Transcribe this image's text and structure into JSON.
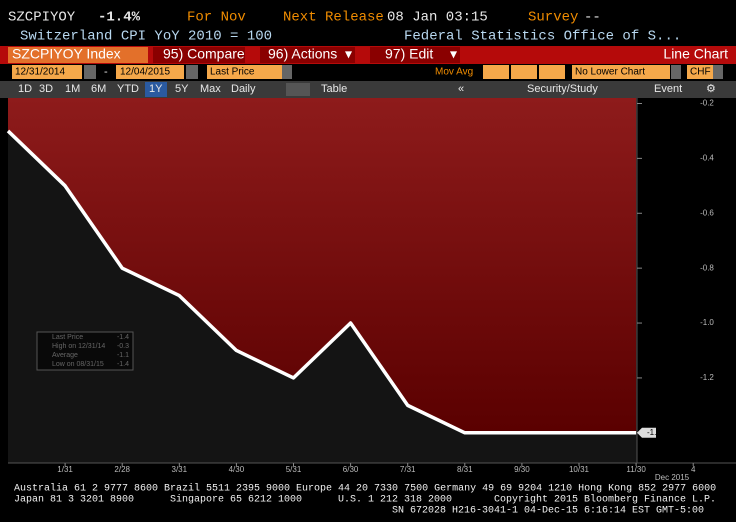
{
  "header": {
    "ticker": "SZCPIYOY",
    "change": "-1.4%",
    "period": "For Nov",
    "release_label": "Next Release",
    "release": "08 Jan 03:15",
    "survey_label": "Survey",
    "survey": "--",
    "description": "Switzerland CPI YoY 2010 = 100",
    "source": "Federal Statistics Office of S..."
  },
  "menu": {
    "security": "SZCPIYOY Index",
    "items": [
      "95) Compare",
      "96) Actions",
      "97) Edit"
    ],
    "chart_type": "Line Chart"
  },
  "controls": {
    "start": "12/31/2014",
    "separator": "-",
    "end": "12/04/2015",
    "field": "Last Price",
    "study": "Mov Avg",
    "lower": "No Lower Chart",
    "currency": "CHF"
  },
  "toolbar": {
    "ranges": [
      "1D",
      "3D",
      "1M",
      "6M",
      "YTD",
      "1Y",
      "5Y",
      "Max"
    ],
    "frequency": "Daily",
    "table": "Table",
    "study": "Security/Study",
    "event": "Event"
  },
  "chart_data": {
    "type": "line",
    "categories": [
      null,
      "1/31",
      "2/28",
      "3/31",
      "4/30",
      "5/31",
      "6/30",
      "7/31",
      "8/31",
      "9/30",
      "10/31",
      "11/30",
      "4"
    ],
    "x_sublabel": "Dec 2015",
    "values": [
      -0.3,
      -0.5,
      -0.8,
      -0.9,
      -1.1,
      -1.2,
      -1.0,
      -1.3,
      -1.4,
      -1.4,
      -1.4,
      -1.4,
      null
    ],
    "color": "#ffffff",
    "area_color": "#8e1b1b",
    "ylim": [
      -1.51,
      -0.18
    ],
    "yticks": [
      -0.2,
      -0.4,
      -0.6,
      -0.8,
      {
        "value": -1,
        "label": "-1.0"
      },
      -1.2
    ],
    "last_price_marker": -1.4,
    "legend": [
      {
        "name": "Last Price",
        "value": -1.4
      },
      {
        "name": "High on 12/31/14",
        "value": -0.3
      },
      {
        "name": "Average",
        "value": -1.1
      },
      {
        "name": "Low on 08/31/15",
        "value": -1.4
      }
    ]
  },
  "footer": {
    "line1": "Australia 61 2 9777 8600 Brazil 5511 2395 9000 Europe 44 20 7330 7500 Germany 49 69 9204 1210 Hong Kong 852 2977 6000",
    "line2": [
      "Japan 81 3 3201 8900",
      "Singapore 65 6212 1000",
      "U.S. 1 212 318 2000",
      "Copyright 2015 Bloomberg Finance L.P."
    ],
    "line3": "SN 672028 H216-3041-1 04-Dec-15  6:16:14 EST  GMT-5:00"
  }
}
